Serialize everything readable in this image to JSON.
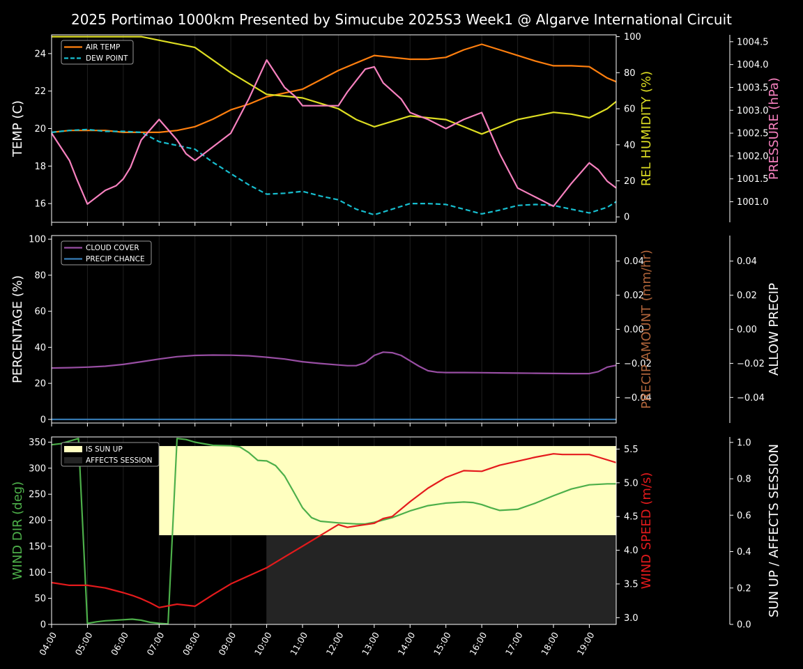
{
  "title": "2025 Portimao 1000km Presented by Simucube 2025S3 Week1 @ Algarve International Circuit",
  "x_ticks": [
    "04:00",
    "05:00",
    "06:00",
    "07:00",
    "08:00",
    "09:00",
    "10:00",
    "11:00",
    "12:00",
    "13:00",
    "14:00",
    "15:00",
    "16:00",
    "17:00",
    "18:00",
    "19:00"
  ],
  "chart_data": [
    {
      "type": "line",
      "title": "",
      "xlim": [
        4.0,
        19.75
      ],
      "ylabel": "TEMP (C)",
      "ylim": [
        15.0,
        25.0
      ],
      "yticks": [
        "16",
        "18",
        "20",
        "22",
        "24"
      ],
      "ylabel2": "REL HUMIDITY (%)",
      "ylim2": [
        -3,
        101
      ],
      "yticks2": [
        "0",
        "20",
        "40",
        "60",
        "80",
        "100"
      ],
      "ylabel3": "PRESSURE (hPa)",
      "ylim3": [
        1000.55,
        1004.65
      ],
      "yticks3": [
        "1001.0",
        "1001.5",
        "1002.0",
        "1002.5",
        "1003.0",
        "1003.5",
        "1004.0",
        "1004.5"
      ],
      "legend": [
        "AIR TEMP",
        "DEW POINT"
      ],
      "legend_position": "top-left",
      "series": [
        {
          "name": "AIR TEMP",
          "axis": "left",
          "color": "#ff7f0e",
          "style": "solid",
          "x": [
            4,
            4.5,
            5,
            5.5,
            6,
            6.5,
            7,
            7.5,
            8,
            8.5,
            9,
            9.5,
            10,
            10.5,
            11,
            11.5,
            12,
            12.5,
            13,
            13.5,
            14,
            14.5,
            15,
            15.5,
            16,
            16.5,
            17,
            17.5,
            18,
            18.5,
            19,
            19.5,
            19.75
          ],
          "y": [
            19.8,
            19.9,
            19.9,
            19.9,
            19.8,
            19.8,
            19.8,
            19.9,
            20.1,
            20.5,
            21.0,
            21.3,
            21.7,
            21.9,
            22.1,
            22.6,
            23.1,
            23.5,
            23.9,
            23.8,
            23.7,
            23.7,
            23.8,
            24.2,
            24.5,
            24.2,
            23.9,
            23.6,
            23.35,
            23.35,
            23.3,
            22.7,
            22.5
          ]
        },
        {
          "name": "DEW POINT",
          "axis": "left",
          "color": "#17becf",
          "style": "dashed",
          "x": [
            4,
            4.5,
            5,
            5.5,
            6,
            6.5,
            7,
            7.5,
            8,
            8.5,
            9,
            9.5,
            10,
            10.5,
            11,
            11.5,
            12,
            12.5,
            13,
            13.5,
            14,
            14.5,
            15,
            15.5,
            16,
            16.5,
            17,
            17.5,
            18,
            18.5,
            19,
            19.5,
            19.75
          ],
          "y": [
            19.8,
            19.9,
            19.95,
            19.85,
            19.85,
            19.8,
            19.3,
            19.1,
            18.9,
            18.2,
            17.6,
            17.0,
            16.5,
            16.55,
            16.65,
            16.4,
            16.2,
            15.7,
            15.4,
            15.7,
            16.0,
            16.0,
            15.95,
            15.7,
            15.45,
            15.65,
            15.9,
            15.95,
            15.9,
            15.7,
            15.5,
            15.8,
            16.1
          ]
        },
        {
          "name": "REL HUMIDITY",
          "axis": "right",
          "color": "#dddd22",
          "style": "solid",
          "x": [
            4,
            4.5,
            5,
            5.5,
            6,
            6.5,
            7,
            7.5,
            8,
            8.5,
            9,
            9.5,
            10,
            10.5,
            11,
            11.5,
            12,
            12.5,
            13,
            13.5,
            14,
            14.5,
            15,
            15.5,
            16,
            16.5,
            17,
            17.5,
            18,
            18.5,
            19,
            19.5,
            19.75
          ],
          "y": [
            100,
            100,
            100,
            100,
            100,
            100,
            98,
            96,
            94,
            87,
            80,
            74,
            68,
            67,
            66,
            63,
            60,
            54,
            50,
            53,
            56,
            55,
            54,
            50,
            46,
            50,
            54,
            56,
            58,
            57,
            55,
            60,
            64
          ]
        },
        {
          "name": "PRESSURE",
          "axis": "right2",
          "color": "#f781bf",
          "style": "solid",
          "x": [
            4,
            4.5,
            4.7,
            5,
            5.5,
            5.8,
            6,
            6.2,
            6.5,
            7,
            7.5,
            7.75,
            8,
            8.5,
            9,
            9.5,
            10,
            10.5,
            10.8,
            11,
            11.5,
            12,
            12.25,
            12.5,
            12.75,
            13,
            13.25,
            13.75,
            14,
            14.5,
            15,
            15.5,
            16,
            16.5,
            17,
            17.5,
            18,
            18.5,
            19,
            19.25,
            19.5,
            19.75
          ],
          "y": [
            1002.5,
            1001.9,
            1001.5,
            1000.95,
            1001.25,
            1001.35,
            1001.5,
            1001.75,
            1002.35,
            1002.8,
            1002.35,
            1002.05,
            1001.9,
            1002.2,
            1002.5,
            1003.25,
            1004.1,
            1003.5,
            1003.3,
            1003.1,
            1003.1,
            1003.1,
            1003.4,
            1003.65,
            1003.9,
            1003.95,
            1003.6,
            1003.25,
            1002.95,
            1002.8,
            1002.6,
            1002.8,
            1002.95,
            1002.05,
            1001.3,
            1001.1,
            1000.9,
            1001.4,
            1001.85,
            1001.7,
            1001.45,
            1001.3
          ]
        }
      ]
    },
    {
      "type": "line",
      "title": "",
      "xlim": [
        4.0,
        19.75
      ],
      "ylabel": "PERCENTAGE (%)",
      "ylim": [
        -2,
        102
      ],
      "yticks": [
        "0",
        "20",
        "40",
        "60",
        "80",
        "100"
      ],
      "ylabel2": "PRECIP AMOUNT (mm/hr)",
      "ylim2": [
        -0.055,
        0.055
      ],
      "yticks2": [
        "−0.04",
        "−0.02",
        "0.00",
        "0.02",
        "0.04"
      ],
      "ylabel3": "ALLOW PRECIP",
      "ylim3": [
        -0.055,
        0.055
      ],
      "yticks3": [
        "−0.04",
        "−0.02",
        "0.00",
        "0.02",
        "0.04"
      ],
      "legend": [
        "CLOUD COVER",
        "PRECIP CHANCE"
      ],
      "legend_position": "top-left",
      "series": [
        {
          "name": "CLOUD COVER",
          "axis": "left",
          "color": "#984ea3",
          "style": "solid",
          "x": [
            4,
            4.5,
            5,
            5.5,
            6,
            6.5,
            7,
            7.5,
            8,
            8.5,
            9,
            9.5,
            10,
            10.5,
            11,
            11.5,
            12,
            12.25,
            12.5,
            12.75,
            13,
            13.25,
            13.5,
            13.75,
            14,
            14.25,
            14.5,
            14.75,
            15,
            15.5,
            16,
            16.5,
            17,
            17.5,
            18,
            18.5,
            19,
            19.25,
            19.5,
            19.75
          ],
          "y": [
            28.5,
            28.7,
            29,
            29.5,
            30.5,
            32,
            33.5,
            34.8,
            35.5,
            35.7,
            35.6,
            35.3,
            34.5,
            33.5,
            32,
            31,
            30.2,
            29.8,
            29.8,
            31.5,
            35.5,
            37.3,
            37,
            35.5,
            32.5,
            29.5,
            27,
            26.2,
            26,
            26,
            25.9,
            25.8,
            25.7,
            25.6,
            25.5,
            25.4,
            25.4,
            26.5,
            29,
            30
          ]
        },
        {
          "name": "PRECIP CHANCE",
          "axis": "left",
          "color": "#377eb8",
          "style": "solid",
          "x": [
            4,
            19.75
          ],
          "y": [
            0,
            0
          ]
        }
      ]
    },
    {
      "type": "line",
      "title": "",
      "xlim": [
        4.0,
        19.75
      ],
      "ylabel": "WIND DIR (deg)",
      "ylim": [
        0,
        360
      ],
      "yticks": [
        "0",
        "50",
        "100",
        "150",
        "200",
        "250",
        "300",
        "350"
      ],
      "ylabel2": "WIND SPEED (m/s)",
      "ylim2": [
        2.9,
        5.68
      ],
      "yticks2": [
        "3.0",
        "3.5",
        "4.0",
        "4.5",
        "5.0",
        "5.5"
      ],
      "ylabel3": "SUN UP / AFFECTS SESSION",
      "ylim3": [
        0.0,
        1.03
      ],
      "yticks3": [
        "0.0",
        "0.2",
        "0.4",
        "0.6",
        "0.8",
        "1.0"
      ],
      "legend": [
        "IS SUN UP",
        "AFFECTS SESSION"
      ],
      "legend_position": "top-left",
      "bands": [
        {
          "name": "IS SUN UP",
          "color": "#ffffc0",
          "x0": 7.0,
          "x1": 19.75,
          "y0": 0.49,
          "y1": 0.98
        },
        {
          "name": "AFFECTS SESSION",
          "color": "#242424",
          "x0": 10.0,
          "x1": 19.75,
          "y0": 0.0,
          "y1": 0.49
        }
      ],
      "series": [
        {
          "name": "WIND DIR",
          "axis": "left",
          "color": "#4daf4a",
          "style": "solid",
          "x": [
            4,
            4.25,
            4.5,
            4.75,
            5,
            5.25,
            5.5,
            6,
            6.25,
            6.5,
            6.75,
            7,
            7.25,
            7.5,
            7.75,
            8,
            8.5,
            9,
            9.25,
            9.5,
            9.75,
            10,
            10.25,
            10.5,
            10.75,
            11,
            11.25,
            11.5,
            12,
            12.5,
            12.75,
            13,
            13.5,
            14,
            14.5,
            15,
            15.5,
            15.75,
            16,
            16.25,
            16.5,
            17,
            17.5,
            18,
            18.5,
            19,
            19.5,
            19.75
          ],
          "y": [
            345,
            347,
            352,
            357,
            2,
            5,
            7,
            9,
            10,
            8,
            4,
            2,
            1,
            357,
            355,
            350,
            344,
            343,
            341,
            330,
            315,
            314,
            305,
            285,
            255,
            224,
            205,
            198,
            195,
            193,
            193,
            196,
            205,
            218,
            228,
            233,
            235,
            234,
            230,
            224,
            219,
            221,
            233,
            247,
            260,
            268,
            270,
            270
          ]
        },
        {
          "name": "WIND SPEED",
          "axis": "right",
          "color": "#e41a1c",
          "style": "solid",
          "x": [
            4,
            4.5,
            4.75,
            5,
            5.25,
            5.5,
            6,
            6.25,
            6.5,
            6.75,
            7,
            7.5,
            8,
            8.5,
            9,
            9.5,
            10,
            10.5,
            11,
            11.5,
            12,
            12.25,
            12.5,
            12.75,
            13,
            13.25,
            13.5,
            14,
            14.5,
            15,
            15.5,
            16,
            16.5,
            17,
            17.5,
            18,
            18.25,
            18.5,
            19,
            19.25,
            19.75
          ],
          "y": [
            3.52,
            3.48,
            3.48,
            3.48,
            3.46,
            3.44,
            3.37,
            3.33,
            3.28,
            3.22,
            3.15,
            3.2,
            3.17,
            3.34,
            3.5,
            3.62,
            3.74,
            3.9,
            4.06,
            4.22,
            4.38,
            4.34,
            4.36,
            4.38,
            4.4,
            4.47,
            4.5,
            4.72,
            4.92,
            5.08,
            5.18,
            5.17,
            5.26,
            5.32,
            5.38,
            5.43,
            5.42,
            5.42,
            5.42,
            5.38,
            5.3
          ]
        }
      ]
    }
  ]
}
